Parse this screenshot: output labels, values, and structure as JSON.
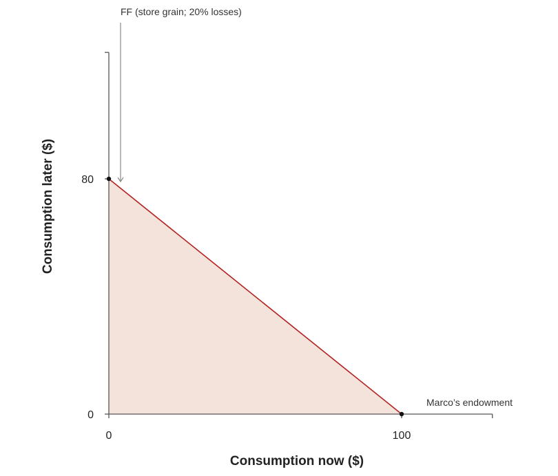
{
  "chart_data": {
    "type": "area",
    "title": "",
    "xlabel": "Consumption now ($)",
    "ylabel": "Consumption later ($)",
    "xlim": [
      0,
      131
    ],
    "ylim": [
      0,
      123
    ],
    "x_ticks": [
      0,
      100
    ],
    "y_ticks": [
      0,
      80
    ],
    "grid": false,
    "series": [
      {
        "name": "FF (store grain; 20% losses)",
        "x": [
          0,
          100
        ],
        "y": [
          80,
          0
        ],
        "color": "#b22222",
        "fill": "#f3e3da"
      }
    ],
    "points": [
      {
        "x": 0,
        "y": 80
      },
      {
        "x": 100,
        "y": 0
      }
    ],
    "annotations": [
      {
        "text": "FF (store grain; 20% losses)",
        "x": 0,
        "y": 80,
        "arrow": true
      },
      {
        "text": "Marco’s endowment",
        "x": 100,
        "y": 0,
        "arrow": false
      }
    ]
  }
}
